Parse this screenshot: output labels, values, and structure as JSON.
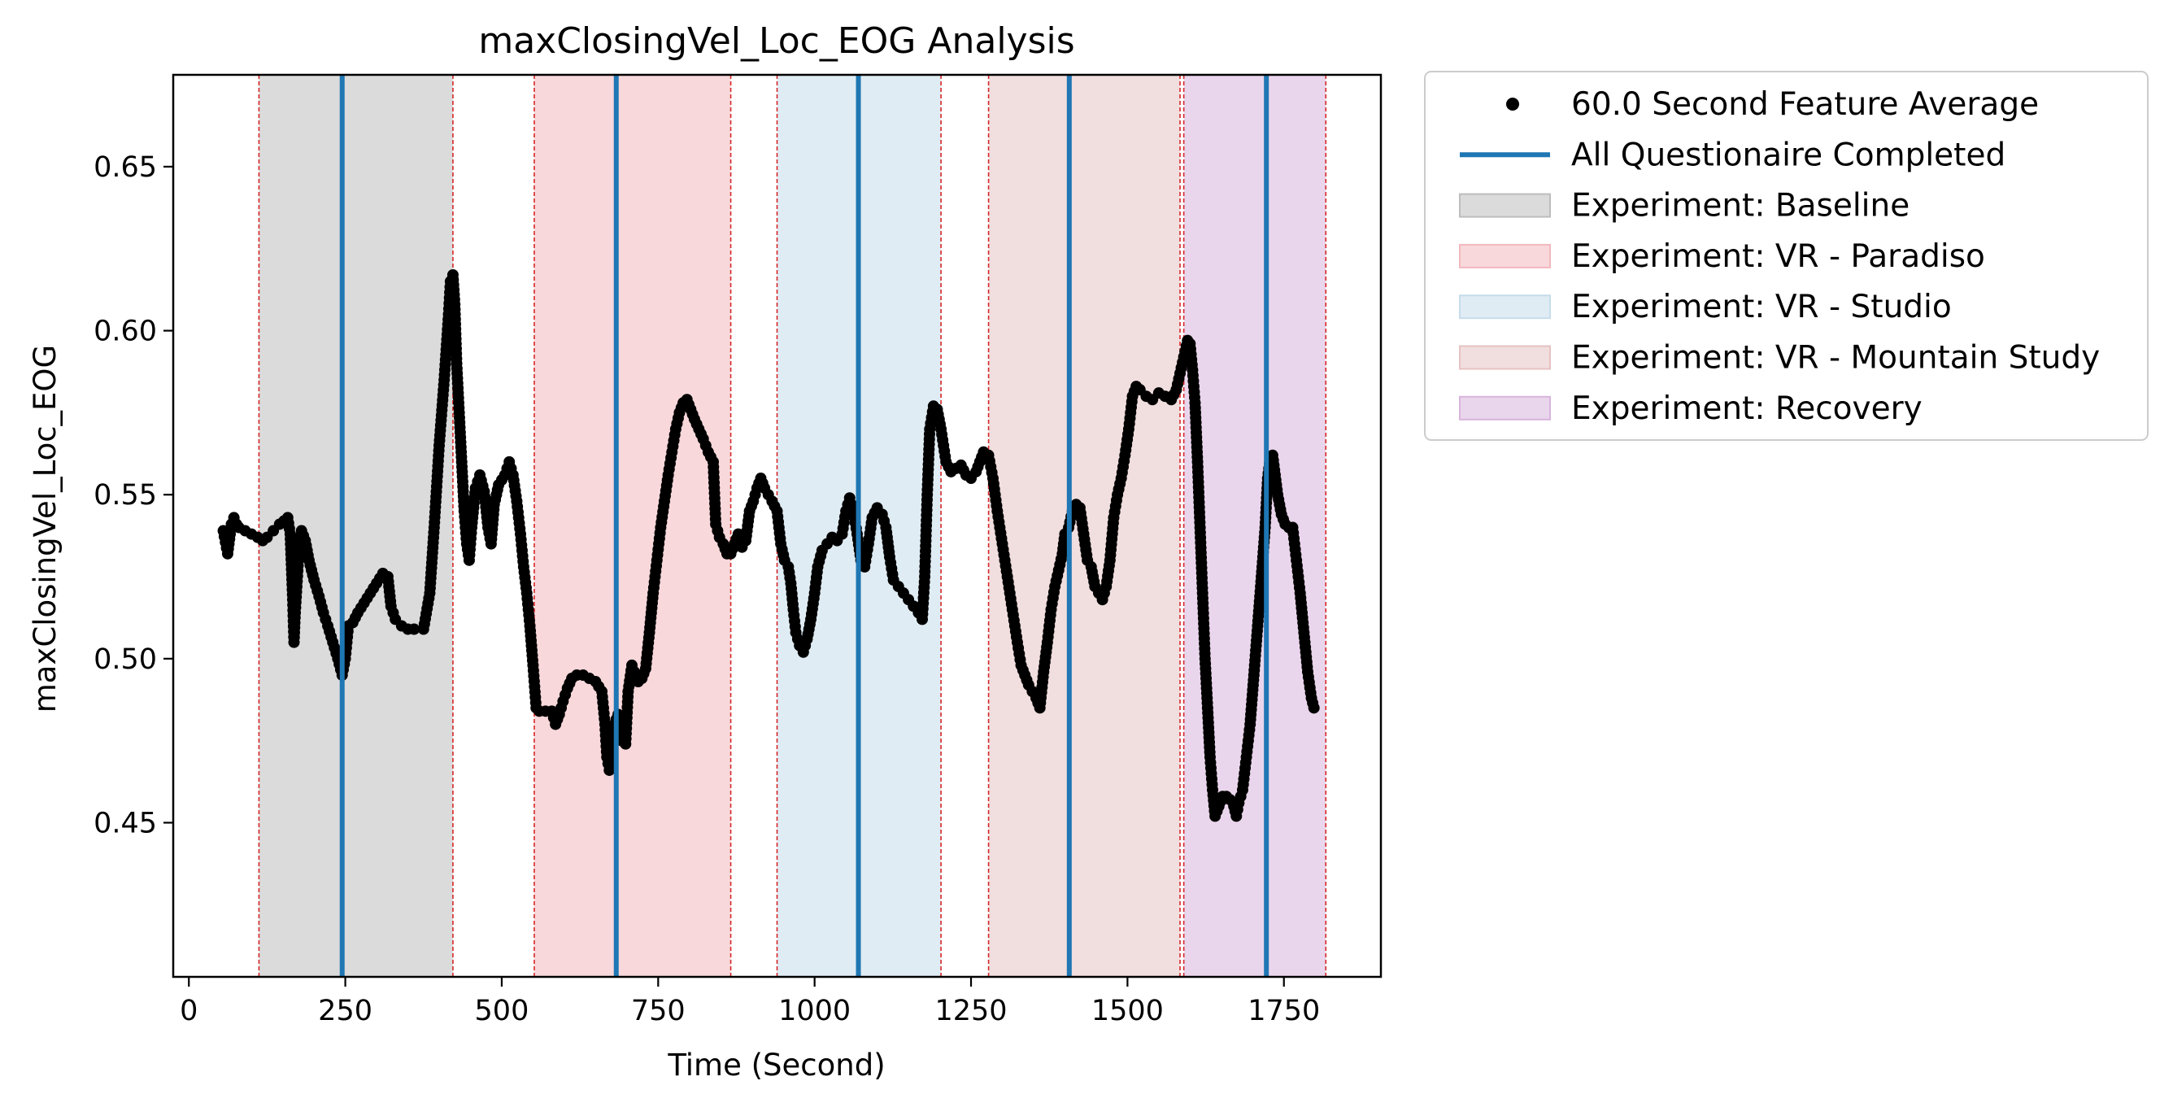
{
  "chart_data": {
    "type": "scatter",
    "title": "maxClosingVel_Loc_EOG Analysis",
    "xlabel": "Time (Second)",
    "ylabel": "maxClosingVel_Loc_EOG",
    "xlim": [
      -25,
      1905
    ],
    "ylim": [
      0.403,
      0.678
    ],
    "xticks": [
      {
        "v": 0,
        "label": "0"
      },
      {
        "v": 250,
        "label": "250"
      },
      {
        "v": 500,
        "label": "500"
      },
      {
        "v": 750,
        "label": "750"
      },
      {
        "v": 1000,
        "label": "1000"
      },
      {
        "v": 1250,
        "label": "1250"
      },
      {
        "v": 1500,
        "label": "1500"
      },
      {
        "v": 1750,
        "label": "1750"
      }
    ],
    "yticks": [
      {
        "v": 0.45,
        "label": "0.45"
      },
      {
        "v": 0.5,
        "label": "0.50"
      },
      {
        "v": 0.55,
        "label": "0.55"
      },
      {
        "v": 0.6,
        "label": "0.60"
      },
      {
        "v": 0.65,
        "label": "0.65"
      }
    ],
    "grid": false,
    "legend_position": "outside-top-right",
    "series": [
      {
        "name": "60.0 Second Feature Average",
        "kind": "points",
        "color": "#000000",
        "points": [
          [
            55,
            0.539
          ],
          [
            62,
            0.532
          ],
          [
            68,
            0.541
          ],
          [
            72,
            0.543
          ],
          [
            76,
            0.541
          ],
          [
            80,
            0.54
          ],
          [
            90,
            0.539
          ],
          [
            100,
            0.538
          ],
          [
            110,
            0.537
          ],
          [
            118,
            0.536
          ],
          [
            125,
            0.537
          ],
          [
            135,
            0.539
          ],
          [
            145,
            0.541
          ],
          [
            152,
            0.542
          ],
          [
            158,
            0.543
          ],
          [
            162,
            0.538
          ],
          [
            166,
            0.518
          ],
          [
            168,
            0.505
          ],
          [
            170,
            0.514
          ],
          [
            175,
            0.53
          ],
          [
            180,
            0.539
          ],
          [
            186,
            0.536
          ],
          [
            192,
            0.53
          ],
          [
            200,
            0.524
          ],
          [
            208,
            0.519
          ],
          [
            215,
            0.514
          ],
          [
            222,
            0.51
          ],
          [
            230,
            0.505
          ],
          [
            238,
            0.5
          ],
          [
            245,
            0.495
          ],
          [
            250,
            0.5
          ],
          [
            255,
            0.51
          ],
          [
            262,
            0.511
          ],
          [
            270,
            0.514
          ],
          [
            280,
            0.517
          ],
          [
            290,
            0.52
          ],
          [
            300,
            0.523
          ],
          [
            310,
            0.526
          ],
          [
            318,
            0.525
          ],
          [
            323,
            0.516
          ],
          [
            330,
            0.512
          ],
          [
            340,
            0.51
          ],
          [
            350,
            0.509
          ],
          [
            360,
            0.509
          ],
          [
            375,
            0.509
          ],
          [
            385,
            0.52
          ],
          [
            392,
            0.54
          ],
          [
            400,
            0.565
          ],
          [
            408,
            0.585
          ],
          [
            415,
            0.605
          ],
          [
            418,
            0.615
          ],
          [
            422,
            0.617
          ],
          [
            425,
            0.608
          ],
          [
            428,
            0.59
          ],
          [
            432,
            0.575
          ],
          [
            436,
            0.56
          ],
          [
            440,
            0.545
          ],
          [
            444,
            0.535
          ],
          [
            448,
            0.53
          ],
          [
            452,
            0.54
          ],
          [
            458,
            0.552
          ],
          [
            465,
            0.556
          ],
          [
            472,
            0.551
          ],
          [
            478,
            0.54
          ],
          [
            483,
            0.535
          ],
          [
            488,
            0.547
          ],
          [
            495,
            0.553
          ],
          [
            505,
            0.556
          ],
          [
            512,
            0.56
          ],
          [
            518,
            0.556
          ],
          [
            524,
            0.548
          ],
          [
            530,
            0.538
          ],
          [
            535,
            0.528
          ],
          [
            540,
            0.52
          ],
          [
            545,
            0.51
          ],
          [
            550,
            0.498
          ],
          [
            555,
            0.485
          ],
          [
            560,
            0.484
          ],
          [
            570,
            0.484
          ],
          [
            580,
            0.484
          ],
          [
            586,
            0.48
          ],
          [
            592,
            0.483
          ],
          [
            598,
            0.487
          ],
          [
            605,
            0.491
          ],
          [
            612,
            0.494
          ],
          [
            620,
            0.495
          ],
          [
            630,
            0.495
          ],
          [
            640,
            0.494
          ],
          [
            650,
            0.493
          ],
          [
            660,
            0.49
          ],
          [
            665,
            0.48
          ],
          [
            668,
            0.47
          ],
          [
            672,
            0.466
          ],
          [
            676,
            0.47
          ],
          [
            680,
            0.48
          ],
          [
            686,
            0.483
          ],
          [
            692,
            0.475
          ],
          [
            698,
            0.474
          ],
          [
            702,
            0.49
          ],
          [
            708,
            0.498
          ],
          [
            712,
            0.496
          ],
          [
            718,
            0.493
          ],
          [
            724,
            0.494
          ],
          [
            730,
            0.497
          ],
          [
            736,
            0.508
          ],
          [
            742,
            0.52
          ],
          [
            748,
            0.53
          ],
          [
            754,
            0.54
          ],
          [
            760,
            0.548
          ],
          [
            766,
            0.556
          ],
          [
            772,
            0.563
          ],
          [
            778,
            0.57
          ],
          [
            784,
            0.575
          ],
          [
            790,
            0.578
          ],
          [
            796,
            0.579
          ],
          [
            802,
            0.576
          ],
          [
            808,
            0.573
          ],
          [
            815,
            0.57
          ],
          [
            822,
            0.567
          ],
          [
            830,
            0.563
          ],
          [
            838,
            0.56
          ],
          [
            842,
            0.541
          ],
          [
            848,
            0.537
          ],
          [
            854,
            0.535
          ],
          [
            860,
            0.532
          ],
          [
            866,
            0.532
          ],
          [
            872,
            0.535
          ],
          [
            878,
            0.538
          ],
          [
            884,
            0.534
          ],
          [
            890,
            0.536
          ],
          [
            896,
            0.545
          ],
          [
            902,
            0.548
          ],
          [
            908,
            0.552
          ],
          [
            914,
            0.555
          ],
          [
            920,
            0.552
          ],
          [
            926,
            0.55
          ],
          [
            932,
            0.548
          ],
          [
            940,
            0.545
          ],
          [
            946,
            0.535
          ],
          [
            952,
            0.53
          ],
          [
            958,
            0.528
          ],
          [
            962,
            0.523
          ],
          [
            966,
            0.515
          ],
          [
            970,
            0.508
          ],
          [
            976,
            0.504
          ],
          [
            982,
            0.502
          ],
          [
            988,
            0.506
          ],
          [
            994,
            0.512
          ],
          [
            1000,
            0.52
          ],
          [
            1005,
            0.528
          ],
          [
            1012,
            0.533
          ],
          [
            1020,
            0.535
          ],
          [
            1028,
            0.537
          ],
          [
            1036,
            0.536
          ],
          [
            1044,
            0.538
          ],
          [
            1050,
            0.545
          ],
          [
            1056,
            0.549
          ],
          [
            1062,
            0.545
          ],
          [
            1068,
            0.538
          ],
          [
            1074,
            0.53
          ],
          [
            1080,
            0.528
          ],
          [
            1086,
            0.535
          ],
          [
            1092,
            0.543
          ],
          [
            1100,
            0.546
          ],
          [
            1108,
            0.544
          ],
          [
            1114,
            0.54
          ],
          [
            1120,
            0.531
          ],
          [
            1126,
            0.524
          ],
          [
            1134,
            0.522
          ],
          [
            1142,
            0.52
          ],
          [
            1150,
            0.518
          ],
          [
            1158,
            0.516
          ],
          [
            1166,
            0.514
          ],
          [
            1172,
            0.512
          ],
          [
            1176,
            0.525
          ],
          [
            1180,
            0.55
          ],
          [
            1184,
            0.57
          ],
          [
            1190,
            0.577
          ],
          [
            1196,
            0.576
          ],
          [
            1202,
            0.57
          ],
          [
            1210,
            0.56
          ],
          [
            1218,
            0.557
          ],
          [
            1226,
            0.558
          ],
          [
            1234,
            0.559
          ],
          [
            1242,
            0.556
          ],
          [
            1250,
            0.555
          ],
          [
            1258,
            0.557
          ],
          [
            1264,
            0.56
          ],
          [
            1270,
            0.563
          ],
          [
            1278,
            0.562
          ],
          [
            1285,
            0.555
          ],
          [
            1292,
            0.545
          ],
          [
            1300,
            0.535
          ],
          [
            1308,
            0.525
          ],
          [
            1316,
            0.515
          ],
          [
            1324,
            0.505
          ],
          [
            1330,
            0.498
          ],
          [
            1336,
            0.495
          ],
          [
            1342,
            0.492
          ],
          [
            1348,
            0.49
          ],
          [
            1354,
            0.488
          ],
          [
            1360,
            0.485
          ],
          [
            1366,
            0.496
          ],
          [
            1372,
            0.505
          ],
          [
            1378,
            0.515
          ],
          [
            1384,
            0.522
          ],
          [
            1390,
            0.527
          ],
          [
            1396,
            0.532
          ],
          [
            1400,
            0.538
          ],
          [
            1406,
            0.54
          ],
          [
            1412,
            0.545
          ],
          [
            1418,
            0.547
          ],
          [
            1424,
            0.546
          ],
          [
            1430,
            0.538
          ],
          [
            1436,
            0.53
          ],
          [
            1442,
            0.528
          ],
          [
            1448,
            0.522
          ],
          [
            1454,
            0.52
          ],
          [
            1460,
            0.518
          ],
          [
            1466,
            0.522
          ],
          [
            1472,
            0.53
          ],
          [
            1478,
            0.543
          ],
          [
            1484,
            0.55
          ],
          [
            1490,
            0.555
          ],
          [
            1496,
            0.562
          ],
          [
            1502,
            0.57
          ],
          [
            1508,
            0.58
          ],
          [
            1514,
            0.583
          ],
          [
            1520,
            0.582
          ],
          [
            1530,
            0.58
          ],
          [
            1540,
            0.579
          ],
          [
            1550,
            0.581
          ],
          [
            1560,
            0.58
          ],
          [
            1570,
            0.579
          ],
          [
            1578,
            0.582
          ],
          [
            1584,
            0.587
          ],
          [
            1590,
            0.592
          ],
          [
            1596,
            0.597
          ],
          [
            1600,
            0.596
          ],
          [
            1604,
            0.588
          ],
          [
            1608,
            0.578
          ],
          [
            1612,
            0.56
          ],
          [
            1616,
            0.54
          ],
          [
            1620,
            0.52
          ],
          [
            1624,
            0.5
          ],
          [
            1628,
            0.485
          ],
          [
            1632,
            0.47
          ],
          [
            1636,
            0.46
          ],
          [
            1640,
            0.452
          ],
          [
            1646,
            0.455
          ],
          [
            1652,
            0.458
          ],
          [
            1658,
            0.458
          ],
          [
            1664,
            0.457
          ],
          [
            1670,
            0.455
          ],
          [
            1674,
            0.452
          ],
          [
            1678,
            0.456
          ],
          [
            1684,
            0.46
          ],
          [
            1690,
            0.47
          ],
          [
            1696,
            0.48
          ],
          [
            1702,
            0.495
          ],
          [
            1708,
            0.51
          ],
          [
            1714,
            0.525
          ],
          [
            1720,
            0.54
          ],
          [
            1724,
            0.555
          ],
          [
            1728,
            0.561
          ],
          [
            1732,
            0.562
          ],
          [
            1736,
            0.556
          ],
          [
            1740,
            0.55
          ],
          [
            1746,
            0.544
          ],
          [
            1752,
            0.541
          ],
          [
            1758,
            0.54
          ],
          [
            1764,
            0.54
          ],
          [
            1770,
            0.53
          ],
          [
            1776,
            0.52
          ],
          [
            1782,
            0.508
          ],
          [
            1788,
            0.496
          ],
          [
            1794,
            0.488
          ],
          [
            1798,
            0.485
          ]
        ]
      },
      {
        "name": "All Questionaire Completed",
        "kind": "vlines",
        "color": "#1f77b4",
        "x": [
          245,
          683,
          1070,
          1407,
          1722
        ]
      }
    ],
    "regions": [
      {
        "name": "Experiment: Baseline",
        "color": "#bdbdbd",
        "ranges": [
          [
            112,
            422
          ]
        ]
      },
      {
        "name": "Experiment: VR - Paradiso",
        "color": "#f2b8be",
        "ranges": [
          [
            552,
            866
          ]
        ]
      },
      {
        "name": "Experiment: VR - Studio",
        "color": "#c6dceb",
        "ranges": [
          [
            940,
            1202
          ]
        ]
      },
      {
        "name": "Experiment: VR - Mountain Study",
        "color": "#e6c2c2",
        "ranges": [
          [
            1278,
            1584
          ]
        ]
      },
      {
        "name": "Experiment: Recovery",
        "color": "#d8b4dc",
        "ranges": [
          [
            1590,
            1817
          ]
        ]
      }
    ],
    "boundaries": {
      "color": "#d62728",
      "x": [
        112,
        422,
        552,
        866,
        940,
        1202,
        1278,
        1584,
        1590,
        1817
      ]
    }
  }
}
